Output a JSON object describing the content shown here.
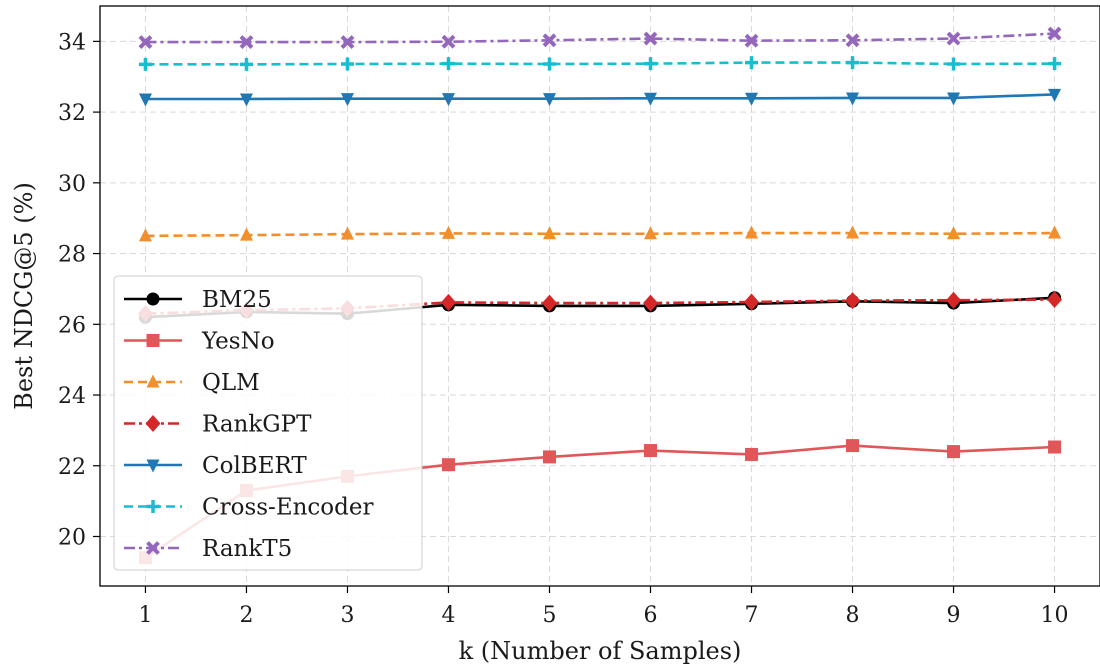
{
  "chart_data": {
    "type": "line",
    "title": "",
    "xlabel": "k (Number of Samples)",
    "ylabel": "Best NDCG@5 (%)",
    "x": [
      1,
      2,
      3,
      4,
      5,
      6,
      7,
      8,
      9,
      10
    ],
    "xticks": [
      "1",
      "2",
      "3",
      "4",
      "5",
      "6",
      "7",
      "8",
      "9",
      "10"
    ],
    "yticks": [
      "20",
      "22",
      "24",
      "26",
      "28",
      "30",
      "32",
      "34"
    ],
    "xlim": [
      0.55,
      10.45
    ],
    "ylim": [
      18.6,
      35.0
    ],
    "grid": true,
    "legend_position": "lower-left",
    "series": [
      {
        "name": "BM25",
        "color": "#000000",
        "dash": "solid",
        "marker": "circle",
        "values": [
          26.2,
          26.35,
          26.3,
          26.55,
          26.52,
          26.52,
          26.58,
          26.65,
          26.6,
          26.75
        ]
      },
      {
        "name": "YesNo",
        "color": "#e15759",
        "dash": "solid",
        "marker": "square",
        "values": [
          19.4,
          21.3,
          21.7,
          22.03,
          22.25,
          22.43,
          22.32,
          22.57,
          22.4,
          22.53
        ]
      },
      {
        "name": "QLM",
        "color": "#f28e2b",
        "dash": "dashed",
        "marker": "triangle-up",
        "values": [
          28.5,
          28.52,
          28.55,
          28.57,
          28.56,
          28.56,
          28.58,
          28.58,
          28.56,
          28.58
        ]
      },
      {
        "name": "RankGPT",
        "color": "#d62728",
        "dash": "dashdot",
        "marker": "diamond",
        "values": [
          26.3,
          26.4,
          26.45,
          26.62,
          26.6,
          26.6,
          26.63,
          26.67,
          26.68,
          26.7
        ]
      },
      {
        "name": "ColBERT",
        "color": "#1f77b4",
        "dash": "solid",
        "marker": "triangle-down",
        "values": [
          32.37,
          32.37,
          32.38,
          32.38,
          32.38,
          32.39,
          32.39,
          32.4,
          32.4,
          32.5
        ]
      },
      {
        "name": "Cross-Encoder",
        "color": "#17becf",
        "dash": "dashed",
        "marker": "plus",
        "values": [
          33.35,
          33.35,
          33.36,
          33.37,
          33.36,
          33.37,
          33.4,
          33.4,
          33.36,
          33.37
        ]
      },
      {
        "name": "RankT5",
        "color": "#9467bd",
        "dash": "dashdot",
        "marker": "x",
        "values": [
          33.98,
          33.98,
          33.98,
          33.99,
          34.03,
          34.08,
          34.02,
          34.03,
          34.08,
          34.22
        ]
      }
    ]
  }
}
